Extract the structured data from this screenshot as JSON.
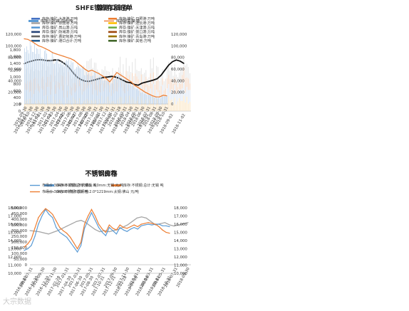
{
  "charts": {
    "p1": {
      "title": "镍港口库存",
      "legend": [
        "库存:镍矿:大连港:万吨",
        "库存:镍矿:日照港:万吨",
        "库存:镍矿:京唐港:万吨",
        "库存:镍矿:连云港:万吨",
        "库存:镍矿:岚山港:万吨",
        "库存:镍矿:天津港:万吨",
        "库存:镍矿:防城港:万吨",
        "库存:镍矿:营口港:万吨",
        "库存:镍矿:曹妃甸港:万吨",
        "库存:镍矿:青岛港:万吨",
        "库存:镍矿:港口合计:万吨",
        "库存:镍矿:其他:万吨"
      ],
      "y_ticks": [
        "1,800",
        "1,600",
        "1,400",
        "1,200",
        "1,000",
        "800",
        "600",
        "400",
        "200",
        "0"
      ],
      "x_ticks": [
        "2016-09-02",
        "2016-11-02",
        "2017-01-02",
        "2017-03-02",
        "2017-05-02",
        "2017-07-02",
        "2017-09-02",
        "2017-11-02",
        "2018-01-02",
        "2018-03-02",
        "2018-05-02",
        "2018-07-02",
        "2018-09-02",
        "2018-11-02"
      ]
    },
    "p2": {
      "title": "SHFE镍库存和仓单",
      "legend": [
        "库存小计:镍:总计:吨",
        "库存期货:镍:吨"
      ],
      "y_left_ticks": [
        "120,000",
        "100,000",
        "80,000",
        "60,000",
        "40,000",
        "20,000",
        "0"
      ],
      "y_right_ticks": [
        "120,000",
        "100,000",
        "80,000",
        "60,000",
        "40,000",
        "20,000",
        "0"
      ],
      "x_ticks": [
        "2016-09-30",
        "2016-10-30",
        "2016-12-30",
        "2017-01-30",
        "2017-02-28",
        "2017-03-30",
        "2017-04-30",
        "2017-05-30",
        "2017-06-30",
        "2017-07-30",
        "2017-08-30",
        "2017-09-30",
        "2017-10-31",
        "2017-11-30",
        "2017-12-31",
        "2018-01-31",
        "2018-02-28",
        "2018-03-31",
        "2018-04-30",
        "2018-05-31",
        "2018-06-30",
        "2018-07-31",
        "2018-08-31",
        "2018-09-30",
        "2018-10-31"
      ]
    },
    "p3": {
      "title": "不锈钢库存",
      "legend": [
        "库存:不锈钢:总计:佛山 吨",
        "库存:不锈钢:总计:无锡 吨",
        "库存:不锈钢:总计 吨"
      ],
      "y_ticks": [
        "500,000",
        "450,000",
        "400,000",
        "350,000",
        "300,000",
        "250,000",
        "200,000",
        "150,000",
        "100,000",
        "50,000",
        "0"
      ],
      "x_ticks": [
        "2016-07-31",
        "2016-09-30",
        "2016-11-30",
        "2017-01-31",
        "2017-03-31",
        "2017-05-31",
        "2017-07-31",
        "2017-09-30",
        "2017-11-30",
        "2018-01-31",
        "2018-03-31",
        "2018-05-31",
        "2018-07-31",
        "2018-09-30"
      ]
    },
    "p4": {
      "title": "不锈钢价格",
      "legend": [
        "市场价:304/NO.1热轧不锈钢板:3.0mm:无锡 元/吨",
        "市场价:304/2B冷轧不锈钢卷:2.0*1219mm:太钢:佛山 元/吨"
      ],
      "y_ticks": [
        "18,000",
        "17,000",
        "16,000",
        "15,000",
        "14,000",
        "13,000",
        "12,000",
        "11,000",
        "10,000"
      ],
      "x_ticks": [
        "2016-08-30",
        "2016-10-30",
        "2016-12-30",
        "2017-02-28",
        "2017-04-30",
        "2017-06-30",
        "2017-08-30",
        "2017-10-31",
        "2017-12-31",
        "2018-02-28",
        "2018-04-30",
        "2018-06-30",
        "2018-08-31",
        "2018-10-31"
      ]
    }
  },
  "watermark": "大宗数据",
  "chart_data": [
    {
      "type": "line",
      "title": "镍港口库存",
      "ylim": [
        0,
        1800
      ],
      "series": [
        {
          "name": "库存:镍矿:港口合计:万吨",
          "values": [
            1390,
            1440,
            1470,
            1500,
            1510,
            1500,
            1480,
            1480,
            1500,
            1500,
            1440,
            1360,
            1250,
            1110,
            990,
            920,
            880,
            870,
            900,
            930,
            960,
            990,
            1000,
            1020,
            1000,
            960,
            900,
            850,
            830,
            780,
            760,
            820,
            850,
            880,
            910,
            950,
            1050,
            1200,
            1350,
            1450,
            1500,
            1470,
            1400
          ]
        }
      ]
    },
    {
      "type": "line",
      "title": "SHFE镍库存和仓单",
      "ylim": [
        0,
        120000
      ],
      "series": [
        {
          "name": "库存期货:镍:吨",
          "values": [
            112000,
            111000,
            108000,
            104000,
            100000,
            98000,
            95000,
            92000,
            88000,
            86000,
            84000,
            82000,
            80000,
            78000,
            75000,
            70000,
            65000,
            60000,
            56000,
            58000,
            55000,
            52000,
            48000,
            44000,
            38000,
            46000,
            54000,
            50000,
            46000,
            42000,
            38000,
            32000,
            28000,
            24000,
            20000,
            17000,
            14000,
            12000,
            12000,
            15000,
            14000
          ]
        }
      ]
    },
    {
      "type": "line",
      "title": "不锈钢库存",
      "ylim": [
        0,
        500000
      ],
      "series": [
        {
          "name": "库存:不锈钢:总计 吨",
          "values": [
            300000,
            295000,
            290000,
            280000,
            270000,
            285000,
            300000,
            320000,
            340000,
            360000,
            380000,
            390000,
            370000,
            340000,
            310000,
            290000,
            300000,
            290000,
            300000,
            310000,
            330000,
            350000,
            380000,
            410000,
            420000,
            410000,
            380000,
            350000,
            360000,
            370000,
            350000,
            340000,
            350000,
            360000,
            370000
          ]
        }
      ]
    },
    {
      "type": "line",
      "title": "不锈钢价格",
      "ylim": [
        10000,
        18000
      ],
      "series": [
        {
          "name": "市场价:304/NO.1热轧不锈钢板:3.0mm:无锡 元/吨",
          "values": [
            12800,
            13000,
            13400,
            14500,
            16000,
            17000,
            17800,
            17200,
            16800,
            15600,
            15000,
            14700,
            14400,
            13800,
            13200,
            12600,
            13400,
            15500,
            16500,
            17400,
            16500,
            15600,
            15000,
            14600,
            15600,
            15200,
            14800,
            15600,
            15300,
            15100,
            15400,
            15600,
            15400,
            15800,
            15900,
            16000,
            15900,
            16000,
            16000,
            15800,
            15800,
            15700
          ]
        },
        {
          "name": "市场价:304/2B冷轧不锈钢卷:2.0*1219mm:太钢:佛山 元/吨",
          "values": [
            13200,
            13600,
            14200,
            15500,
            16800,
            17400,
            17900,
            17600,
            17200,
            16400,
            15600,
            15200,
            14900,
            14400,
            13700,
            13000,
            13800,
            16000,
            17000,
            17800,
            17000,
            16000,
            15400,
            15000,
            15900,
            15500,
            15300,
            15900,
            15600,
            15500,
            15700,
            15900,
            15700,
            16000,
            16100,
            16200,
            16100,
            16000,
            15700,
            15300,
            15000,
            14900
          ]
        }
      ]
    }
  ]
}
